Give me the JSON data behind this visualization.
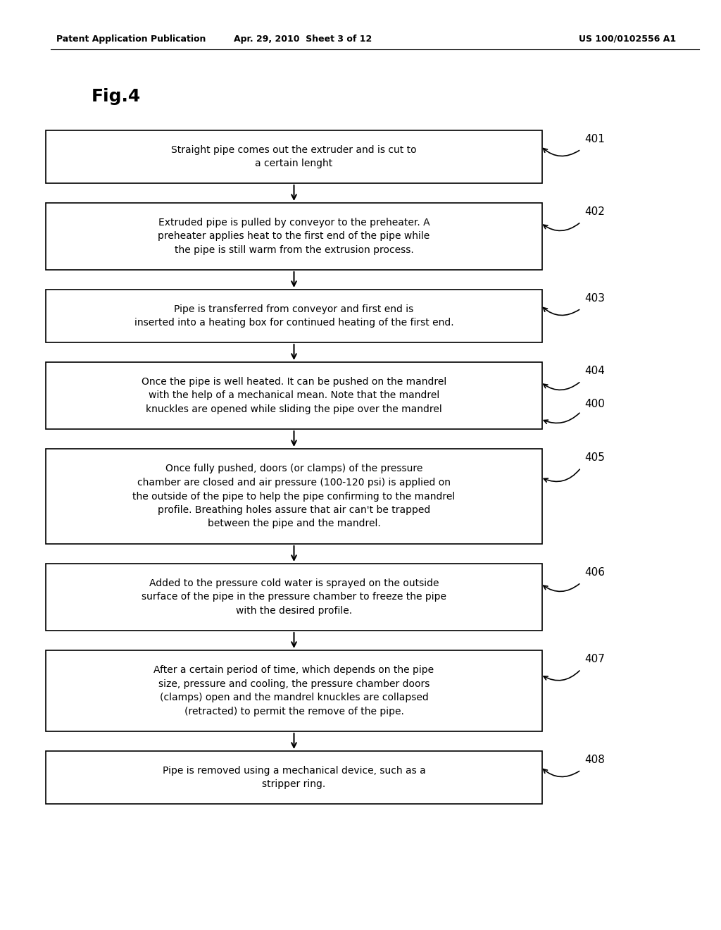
{
  "title_left": "Patent Application Publication",
  "title_center": "Apr. 29, 2010  Sheet 3 of 12",
  "title_right": "US 100/0102556 A1",
  "fig_label": "Fig.4",
  "background_color": "#ffffff",
  "text_color": "#000000",
  "boxes": [
    {
      "id": "401",
      "text": "Straight pipe comes out the extruder and is cut to\na certain lenght",
      "label": "401",
      "extra_label": null
    },
    {
      "id": "402",
      "text": "Extruded pipe is pulled by conveyor to the preheater. A\npreheater applies heat to the first end of the pipe while\nthe pipe is still warm from the extrusion process.",
      "label": "402",
      "extra_label": null
    },
    {
      "id": "403",
      "text": "Pipe is transferred from conveyor and first end is\ninserted into a heating box for continued heating of the first end.",
      "label": "403",
      "extra_label": null
    },
    {
      "id": "404",
      "text": "Once the pipe is well heated. It can be pushed on the mandrel\nwith the help of a mechanical mean. Note that the mandrel\nknuckles are opened while sliding the pipe over the mandrel",
      "label": "404",
      "extra_label": "400"
    },
    {
      "id": "405",
      "text": "Once fully pushed, doors (or clamps) of the pressure\nchamber are closed and air pressure (100-120 psi) is applied on\nthe outside of the pipe to help the pipe confirming to the mandrel\nprofile. Breathing holes assure that air can't be trapped\nbetween the pipe and the mandrel.",
      "label": "405",
      "extra_label": null
    },
    {
      "id": "406",
      "text": "Added to the pressure cold water is sprayed on the outside\nsurface of the pipe in the pressure chamber to freeze the pipe\nwith the desired profile.",
      "label": "406",
      "extra_label": null
    },
    {
      "id": "407",
      "text": "After a certain period of time, which depends on the pipe\nsize, pressure and cooling, the pressure chamber doors\n(clamps) open and the mandrel knuckles are collapsed\n(retracted) to permit the remove of the pipe.",
      "label": "407",
      "extra_label": null
    },
    {
      "id": "408",
      "text": "Pipe is removed using a mechanical device, such as a\nstripper ring.",
      "label": "408",
      "extra_label": null
    }
  ]
}
